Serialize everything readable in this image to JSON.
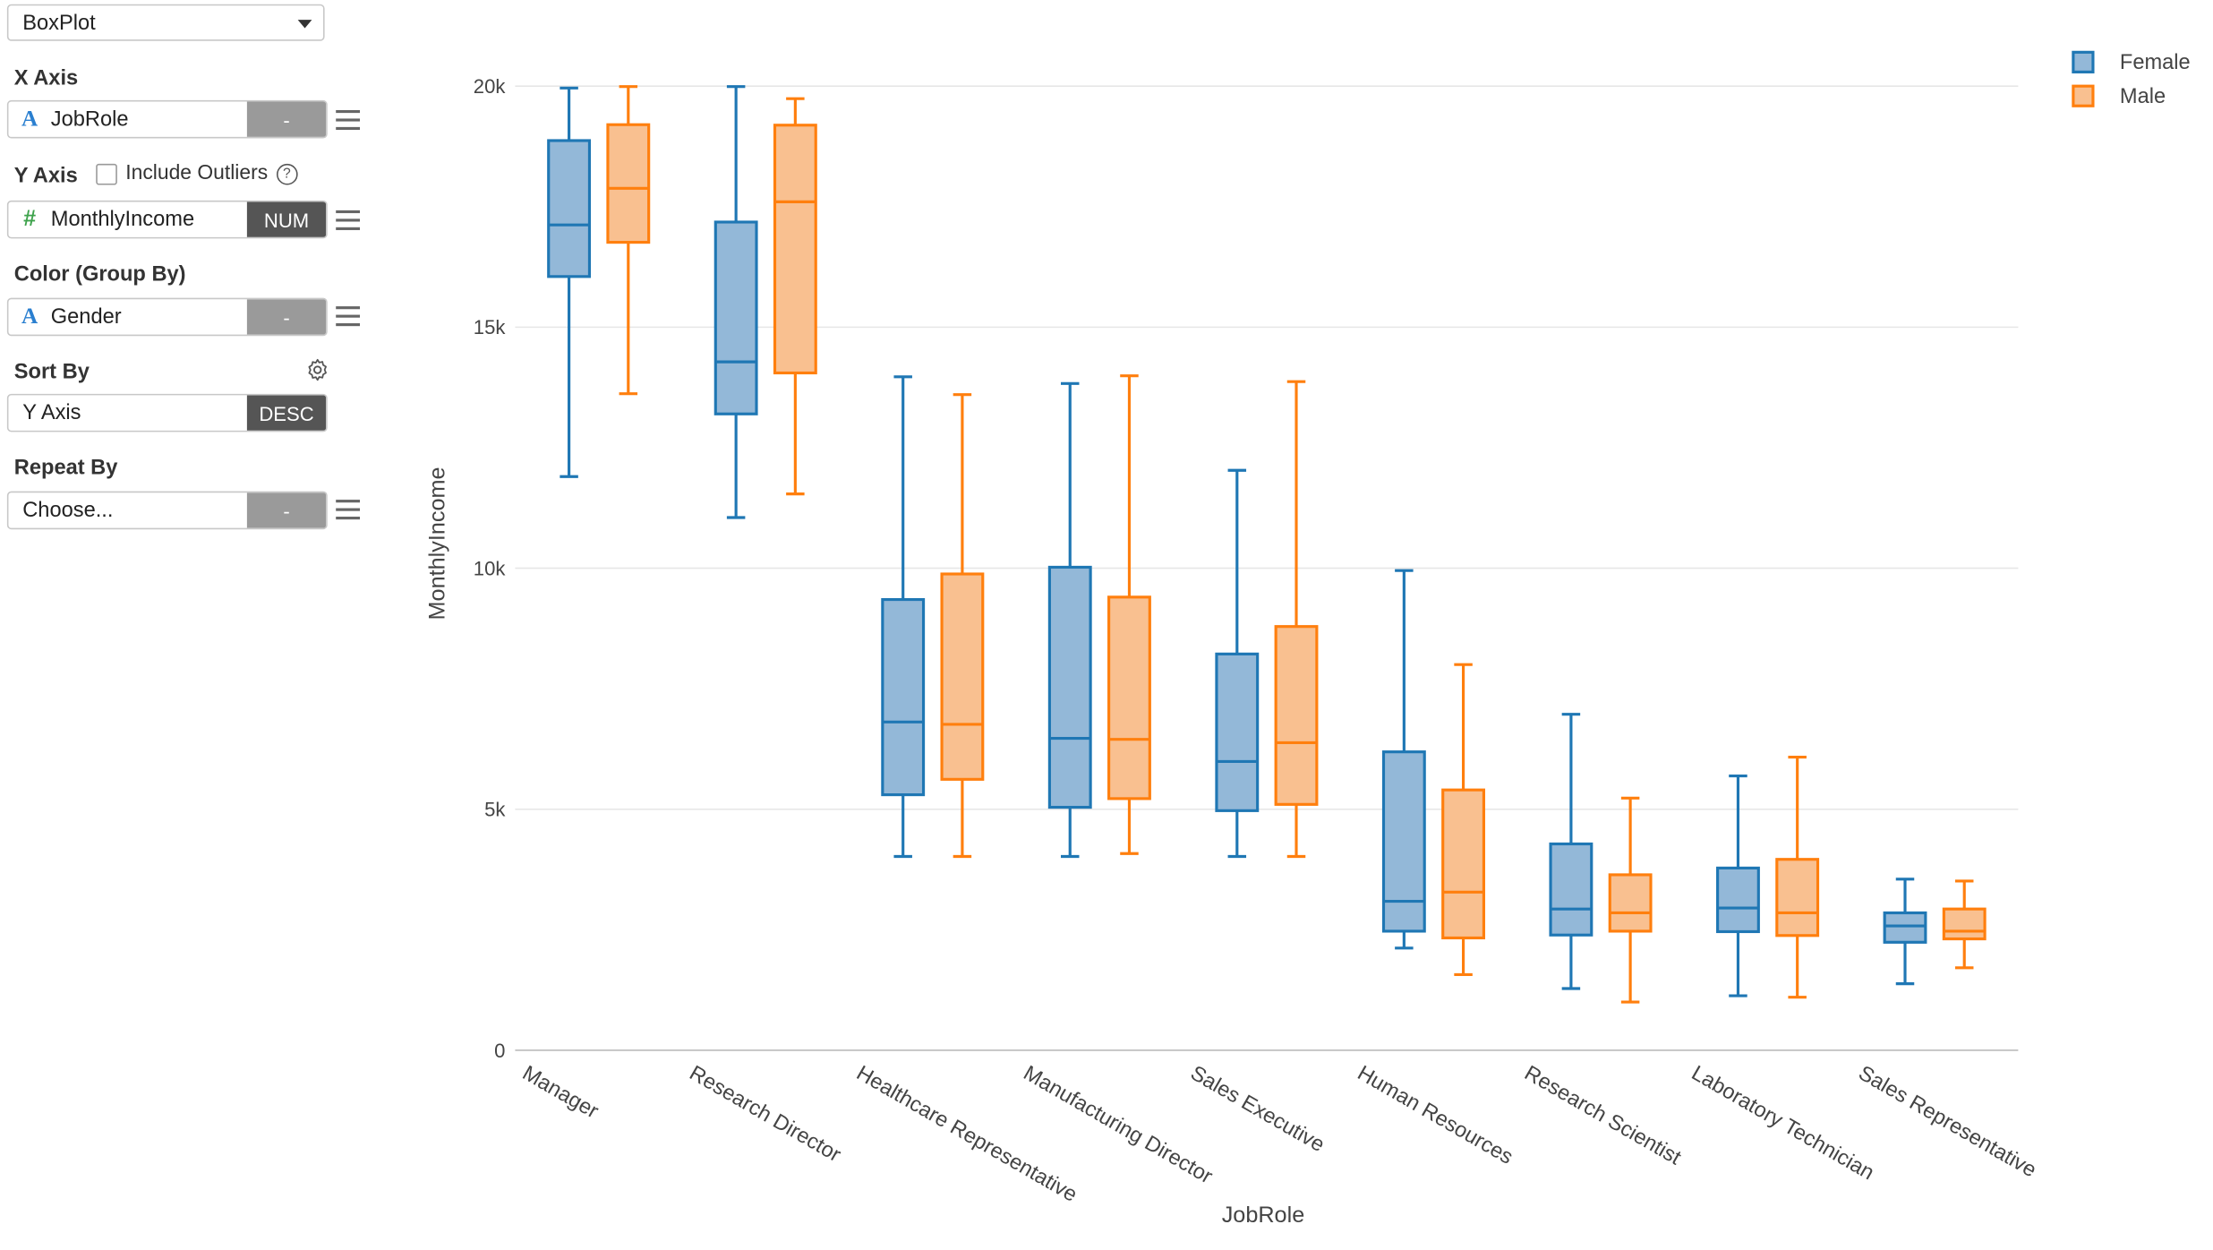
{
  "panel": {
    "chart_type": "BoxPlot",
    "x_axis": {
      "label": "X Axis",
      "field": "JobRole",
      "tag": "-"
    },
    "y_axis": {
      "label": "Y Axis",
      "field": "MonthlyIncome",
      "tag": "NUM",
      "include_outliers_label": "Include Outliers",
      "help": "?"
    },
    "color": {
      "label": "Color (Group By)",
      "field": "Gender",
      "tag": "-"
    },
    "sort": {
      "label": "Sort By",
      "field": "Y Axis",
      "tag": "DESC"
    },
    "repeat": {
      "label": "Repeat By",
      "field": "Choose...",
      "tag": "-"
    }
  },
  "chart_data": {
    "type": "box",
    "xlabel": "JobRole",
    "ylabel": "MonthlyIncome",
    "ylim": [
      0,
      20500
    ],
    "yticks": [
      0,
      5000,
      10000,
      15000,
      20000
    ],
    "ytick_labels": [
      "0",
      "5k",
      "10k",
      "15k",
      "20k"
    ],
    "grid": true,
    "legend_position": "top-right",
    "colors": {
      "Female": "#1f77b4",
      "Male": "#ff7f0e",
      "female_fill": "#93b8d8",
      "male_fill": "#f9c090"
    },
    "categories": [
      "Manager",
      "Research Director",
      "Healthcare Representative",
      "Manufacturing Director",
      "Sales Executive",
      "Human Resources",
      "Research Scientist",
      "Laboratory Technician",
      "Sales Representative"
    ],
    "series": [
      {
        "name": "Female",
        "boxes": [
          {
            "min": 11900,
            "q1": 16050,
            "median": 17120,
            "q3": 18870,
            "max": 19960
          },
          {
            "min": 11050,
            "q1": 13200,
            "median": 14280,
            "q3": 17180,
            "max": 19990
          },
          {
            "min": 4020,
            "q1": 5300,
            "median": 6810,
            "q3": 9350,
            "max": 13970
          },
          {
            "min": 4020,
            "q1": 5040,
            "median": 6470,
            "q3": 10020,
            "max": 13830
          },
          {
            "min": 4020,
            "q1": 4970,
            "median": 5990,
            "q3": 8220,
            "max": 12030
          },
          {
            "min": 2120,
            "q1": 2470,
            "median": 3090,
            "q3": 6190,
            "max": 9950
          },
          {
            "min": 1280,
            "q1": 2390,
            "median": 2930,
            "q3": 4280,
            "max": 6970
          },
          {
            "min": 1130,
            "q1": 2460,
            "median": 2950,
            "q3": 3780,
            "max": 5690
          },
          {
            "min": 1380,
            "q1": 2240,
            "median": 2580,
            "q3": 2850,
            "max": 3550
          }
        ]
      },
      {
        "name": "Male",
        "boxes": [
          {
            "min": 13620,
            "q1": 16760,
            "median": 17880,
            "q3": 19200,
            "max": 19990
          },
          {
            "min": 11540,
            "q1": 14050,
            "median": 17600,
            "q3": 19190,
            "max": 19740
          },
          {
            "min": 4020,
            "q1": 5620,
            "median": 6760,
            "q3": 9880,
            "max": 13600
          },
          {
            "min": 4080,
            "q1": 5220,
            "median": 6450,
            "q3": 9400,
            "max": 13990
          },
          {
            "min": 4020,
            "q1": 5100,
            "median": 6380,
            "q3": 8790,
            "max": 13870
          },
          {
            "min": 1570,
            "q1": 2330,
            "median": 3280,
            "q3": 5400,
            "max": 8000
          },
          {
            "min": 1000,
            "q1": 2470,
            "median": 2850,
            "q3": 3640,
            "max": 5230
          },
          {
            "min": 1100,
            "q1": 2380,
            "median": 2850,
            "q3": 3960,
            "max": 6080
          },
          {
            "min": 1710,
            "q1": 2310,
            "median": 2470,
            "q3": 2930,
            "max": 3510
          }
        ]
      }
    ]
  }
}
